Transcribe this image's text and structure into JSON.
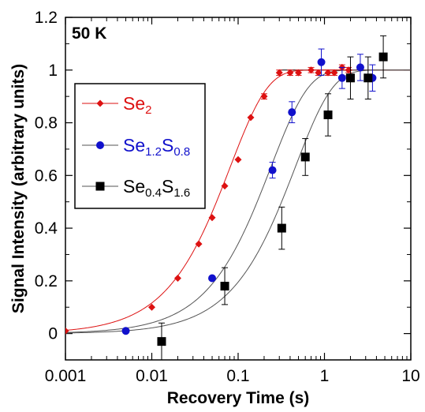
{
  "chart_data": {
    "type": "scatter",
    "annotation": "50 K",
    "xlabel": "Recovery Time (s)",
    "ylabel": "Signal Intensity (arbitrary units)",
    "x_scale": "log",
    "xlim": [
      0.001,
      10
    ],
    "ylim": [
      -0.1,
      1.2
    ],
    "x_ticks": [
      0.001,
      0.01,
      0.1,
      1,
      10
    ],
    "x_tick_labels": [
      "0.001",
      "0.01",
      "0.1",
      "1",
      "10"
    ],
    "y_ticks": [
      0,
      0.2,
      0.4,
      0.6,
      0.8,
      1.0,
      1.2
    ],
    "y_tick_labels": [
      "0",
      "0.2",
      "0.4",
      "0.6",
      "0.8",
      "1",
      "1.2"
    ],
    "grid": false,
    "legend_position": "upper-left",
    "reference_line_y": 1.0,
    "series": [
      {
        "name_parts": [
          {
            "text": "Se",
            "sub": false
          },
          {
            "text": "2",
            "sub": true
          }
        ],
        "color": "#dd1111",
        "marker": "diamond",
        "fit_t1": 0.081,
        "x": [
          0.001,
          0.01,
          0.02,
          0.035,
          0.05,
          0.07,
          0.1,
          0.14,
          0.2,
          0.3,
          0.4,
          0.5,
          0.7,
          0.85,
          1.1,
          1.3,
          1.6,
          1.9
        ],
        "y": [
          0.01,
          0.1,
          0.21,
          0.34,
          0.44,
          0.56,
          0.66,
          0.82,
          0.9,
          0.99,
          0.99,
          0.99,
          1.0,
          0.99,
          0.99,
          0.99,
          1.01,
          1.0
        ],
        "err": [
          0,
          0,
          0,
          0,
          0,
          0,
          0,
          0,
          0.01,
          0.01,
          0.01,
          0.01,
          0.01,
          0.01,
          0.01,
          0.01,
          0.01,
          0.01
        ]
      },
      {
        "name_parts": [
          {
            "text": "Se",
            "sub": false
          },
          {
            "text": "1.2",
            "sub": true
          },
          {
            "text": "S",
            "sub": false
          },
          {
            "text": "0.8",
            "sub": true
          }
        ],
        "color": "#1111cc",
        "marker": "circle",
        "fit_t1": 0.24,
        "x": [
          0.005,
          0.05,
          0.25,
          0.42,
          0.92,
          1.6,
          2.6,
          3.6
        ],
        "y": [
          0.01,
          0.21,
          0.62,
          0.84,
          1.03,
          0.97,
          1.01,
          0.97
        ],
        "err": [
          0,
          0,
          0.03,
          0.04,
          0.05,
          0.04,
          0.05,
          0.05
        ]
      },
      {
        "name_parts": [
          {
            "text": "Se",
            "sub": false
          },
          {
            "text": "0.4",
            "sub": true
          },
          {
            "text": "S",
            "sub": false
          },
          {
            "text": "1.6",
            "sub": true
          }
        ],
        "color": "#000000",
        "marker": "square",
        "fit_t1": 0.46,
        "x": [
          0.013,
          0.07,
          0.32,
          0.6,
          1.1,
          2.0,
          3.2,
          4.8
        ],
        "y": [
          -0.03,
          0.18,
          0.4,
          0.67,
          0.83,
          0.97,
          0.97,
          1.05
        ],
        "err": [
          0.07,
          0.07,
          0.08,
          0.07,
          0.08,
          0.08,
          0.08,
          0.08
        ]
      }
    ]
  }
}
